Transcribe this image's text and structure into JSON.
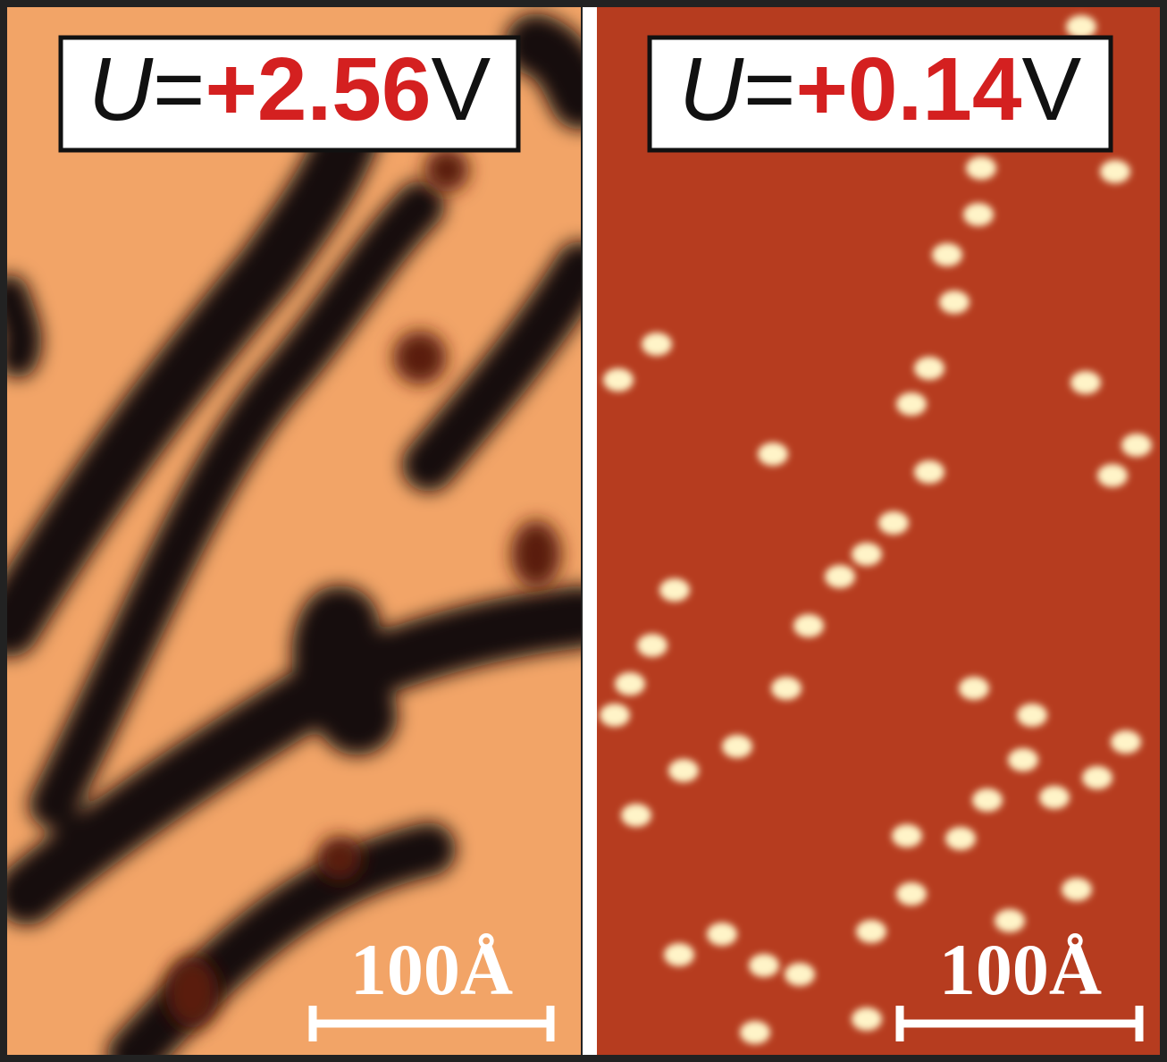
{
  "panels": [
    {
      "label": {
        "symbol": "U",
        "equals": "=",
        "value": "+2.56",
        "unit": "V"
      },
      "scale_bar": "100Å"
    },
    {
      "label": {
        "symbol": "U",
        "equals": "=",
        "value": "+0.14",
        "unit": "V"
      },
      "scale_bar": "100Å"
    }
  ]
}
